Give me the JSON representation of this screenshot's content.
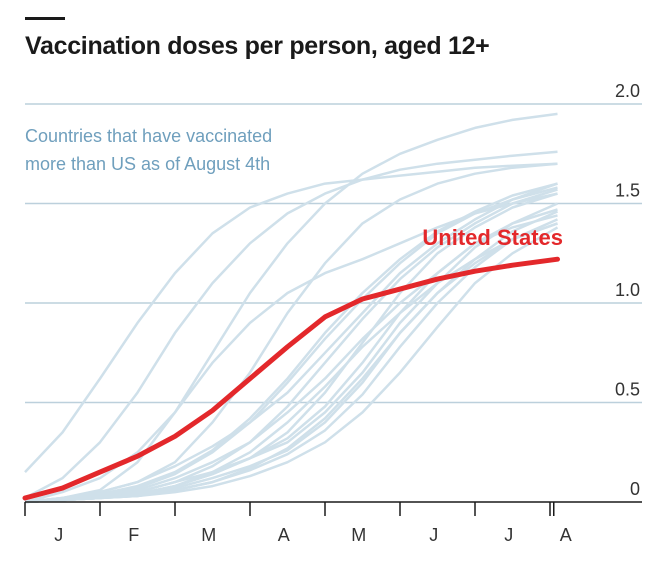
{
  "title": "Vaccination doses per person, aged 12+",
  "chart_data": {
    "type": "line",
    "title": "Vaccination doses per person, aged 12+",
    "xlabel": "",
    "ylabel": "",
    "x_tick_labels": [
      "J",
      "F",
      "M",
      "A",
      "M",
      "J",
      "J",
      "A"
    ],
    "ylim": [
      0,
      2.0
    ],
    "y_ticks": [
      "0",
      "0.5",
      "1.0",
      "1.5",
      "2.0"
    ],
    "grid": true,
    "annotations": {
      "group_label_line1": "Countries that have vaccinated",
      "group_label_line2": "more than US as of August 4th",
      "highlight_label": "United States"
    },
    "colors": {
      "highlight": "#e3282b",
      "others": "#cfe0ea",
      "grid": "#bcd0dc",
      "annotation": "#6f9fbd"
    },
    "x_months_elapsed": [
      0,
      0.5,
      1,
      1.5,
      2,
      2.5,
      3,
      3.5,
      4,
      4.5,
      5,
      5.5,
      6,
      6.5,
      7.1
    ],
    "series": [
      {
        "name": "United States",
        "highlight": true,
        "values": [
          0.02,
          0.07,
          0.15,
          0.23,
          0.33,
          0.46,
          0.62,
          0.78,
          0.93,
          1.02,
          1.07,
          1.12,
          1.16,
          1.19,
          1.22
        ]
      },
      {
        "values": [
          0.15,
          0.35,
          0.62,
          0.9,
          1.15,
          1.35,
          1.48,
          1.55,
          1.6,
          1.62,
          1.64,
          1.66,
          1.68,
          1.69,
          1.7
        ]
      },
      {
        "values": [
          0.02,
          0.12,
          0.3,
          0.55,
          0.85,
          1.1,
          1.3,
          1.45,
          1.55,
          1.62,
          1.67,
          1.7,
          1.72,
          1.74,
          1.76
        ]
      },
      {
        "values": [
          0.0,
          0.02,
          0.06,
          0.2,
          0.45,
          0.75,
          1.05,
          1.3,
          1.5,
          1.65,
          1.75,
          1.82,
          1.88,
          1.92,
          1.95
        ]
      },
      {
        "values": [
          0.0,
          0.02,
          0.05,
          0.1,
          0.2,
          0.4,
          0.65,
          0.95,
          1.2,
          1.4,
          1.52,
          1.6,
          1.65,
          1.68,
          1.7
        ]
      },
      {
        "values": [
          0.0,
          0.01,
          0.03,
          0.05,
          0.1,
          0.15,
          0.22,
          0.3,
          0.45,
          0.65,
          0.9,
          1.1,
          1.28,
          1.4,
          1.5
        ]
      },
      {
        "values": [
          0.0,
          0.01,
          0.02,
          0.04,
          0.07,
          0.12,
          0.18,
          0.26,
          0.4,
          0.6,
          0.85,
          1.05,
          1.22,
          1.36,
          1.46
        ]
      },
      {
        "values": [
          0.0,
          0.01,
          0.02,
          0.03,
          0.06,
          0.1,
          0.16,
          0.24,
          0.36,
          0.54,
          0.78,
          1.0,
          1.18,
          1.32,
          1.42
        ]
      },
      {
        "values": [
          0.0,
          0.01,
          0.02,
          0.04,
          0.08,
          0.14,
          0.22,
          0.35,
          0.55,
          0.8,
          1.05,
          1.25,
          1.38,
          1.48,
          1.55
        ]
      },
      {
        "values": [
          0.0,
          0.02,
          0.05,
          0.1,
          0.18,
          0.28,
          0.4,
          0.55,
          0.75,
          0.95,
          1.15,
          1.3,
          1.42,
          1.52,
          1.6
        ]
      },
      {
        "values": [
          0.0,
          0.01,
          0.03,
          0.06,
          0.12,
          0.2,
          0.3,
          0.45,
          0.62,
          0.82,
          1.0,
          1.15,
          1.3,
          1.4,
          1.47
        ]
      },
      {
        "values": [
          0.0,
          0.01,
          0.02,
          0.03,
          0.05,
          0.08,
          0.13,
          0.2,
          0.3,
          0.45,
          0.65,
          0.88,
          1.1,
          1.25,
          1.38
        ]
      },
      {
        "values": [
          0.0,
          0.01,
          0.02,
          0.05,
          0.1,
          0.18,
          0.3,
          0.48,
          0.7,
          0.92,
          1.12,
          1.28,
          1.4,
          1.5,
          1.57
        ]
      },
      {
        "values": [
          0.0,
          0.05,
          0.12,
          0.25,
          0.45,
          0.7,
          0.9,
          1.05,
          1.15,
          1.22,
          1.3,
          1.38,
          1.45,
          1.5,
          1.55
        ]
      },
      {
        "values": [
          0.0,
          0.01,
          0.02,
          0.04,
          0.08,
          0.14,
          0.22,
          0.32,
          0.48,
          0.7,
          0.95,
          1.15,
          1.3,
          1.38,
          1.44
        ]
      },
      {
        "values": [
          0.0,
          0.01,
          0.03,
          0.07,
          0.14,
          0.25,
          0.4,
          0.6,
          0.82,
          1.02,
          1.2,
          1.35,
          1.45,
          1.52,
          1.58
        ]
      },
      {
        "values": [
          0.0,
          0.01,
          0.02,
          0.04,
          0.08,
          0.15,
          0.25,
          0.4,
          0.58,
          0.78,
          0.95,
          1.1,
          1.22,
          1.32,
          1.4
        ]
      },
      {
        "values": [
          0.0,
          0.01,
          0.02,
          0.03,
          0.06,
          0.1,
          0.17,
          0.27,
          0.42,
          0.62,
          0.85,
          1.05,
          1.2,
          1.32,
          1.4
        ]
      },
      {
        "values": [
          0.0,
          0.02,
          0.04,
          0.08,
          0.15,
          0.26,
          0.42,
          0.62,
          0.85,
          1.05,
          1.22,
          1.36,
          1.46,
          1.54,
          1.6
        ]
      }
    ]
  }
}
